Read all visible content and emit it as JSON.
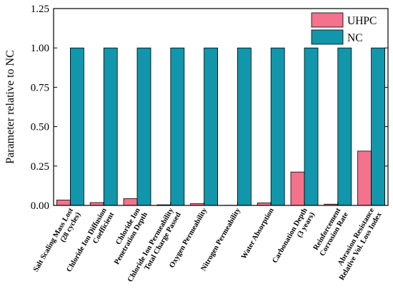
{
  "chart_data": {
    "type": "bar",
    "title": "",
    "xlabel": "",
    "ylabel": "Parameter relative to NC",
    "ylim": [
      0,
      1.25
    ],
    "yticks": [
      "0.00",
      "0.25",
      "0.50",
      "0.75",
      "1.00",
      "1.25"
    ],
    "grid": false,
    "legend_position": "top-right",
    "categories": [
      [
        "Salt Scaling Mass Lost",
        "(28 cycles)"
      ],
      [
        "Chloride Ion Diffusion",
        "Coefficient"
      ],
      [
        "Chloride Ion",
        "Penetration Depth"
      ],
      [
        "Chloride Ion Permeability",
        "Total Charge Passed"
      ],
      [
        "Oxygen Permeability"
      ],
      [
        "Nitrogen Permeability"
      ],
      [
        "Water Absorption"
      ],
      [
        "Carbonation Depth",
        "(3 years)"
      ],
      [
        "Reinforcement",
        "Corrosion Rate"
      ],
      [
        "Abrasion Resistance",
        "Relative Vol. Loss Index"
      ]
    ],
    "series": [
      {
        "name": "UHPC",
        "color": "#f4728c",
        "values": [
          0.034,
          0.018,
          0.043,
          0.004,
          0.011,
          0.001,
          0.016,
          0.212,
          0.008,
          0.345
        ]
      },
      {
        "name": "NC",
        "color": "#1196ab",
        "values": [
          1.0,
          1.0,
          1.0,
          1.0,
          1.0,
          1.0,
          1.0,
          1.0,
          1.0,
          1.0
        ]
      }
    ]
  }
}
